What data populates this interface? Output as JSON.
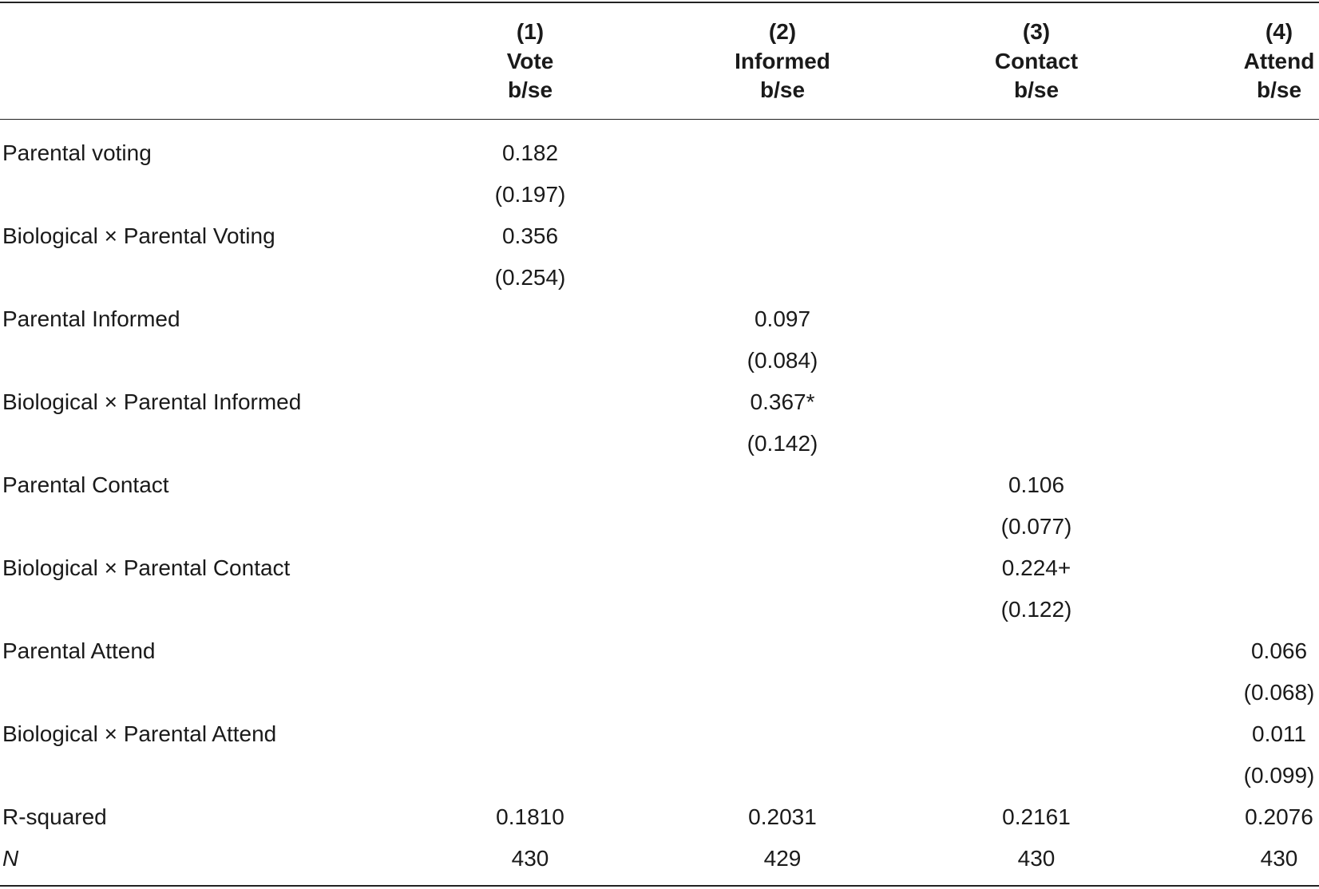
{
  "table": {
    "columns": [
      {
        "number": "(1)",
        "name": "Vote",
        "stat": "b/se"
      },
      {
        "number": "(2)",
        "name": "Informed",
        "stat": "b/se"
      },
      {
        "number": "(3)",
        "name": "Contact",
        "stat": "b/se"
      },
      {
        "number": "(4)",
        "name": "Attend",
        "stat": "b/se"
      }
    ],
    "rows": [
      [
        "Parental voting",
        "0.182",
        null,
        null,
        null
      ],
      [
        null,
        "(0.197)",
        null,
        null,
        null
      ],
      [
        "Biological × Parental Voting",
        "0.356",
        null,
        null,
        null
      ],
      [
        null,
        "(0.254)",
        null,
        null,
        null
      ],
      [
        "Parental Informed",
        null,
        "0.097",
        null,
        null
      ],
      [
        null,
        null,
        "(0.084)",
        null,
        null
      ],
      [
        "Biological × Parental Informed",
        null,
        "0.367*",
        null,
        null
      ],
      [
        null,
        null,
        "(0.142)",
        null,
        null
      ],
      [
        "Parental Contact",
        null,
        null,
        "0.106",
        null
      ],
      [
        null,
        null,
        null,
        "(0.077)",
        null
      ],
      [
        "Biological × Parental Contact",
        null,
        null,
        "0.224+",
        null
      ],
      [
        null,
        null,
        null,
        "(0.122)",
        null
      ],
      [
        "Parental Attend",
        null,
        null,
        null,
        "0.066"
      ],
      [
        null,
        null,
        null,
        null,
        "(0.068)"
      ],
      [
        "Biological × Parental Attend",
        null,
        null,
        null,
        "0.011"
      ],
      [
        null,
        null,
        null,
        null,
        "(0.099)"
      ],
      [
        "R-squared",
        "0.1810",
        "0.2031",
        "0.2161",
        "0.2076"
      ],
      [
        "N",
        "430",
        "429",
        "430",
        "430"
      ]
    ]
  }
}
